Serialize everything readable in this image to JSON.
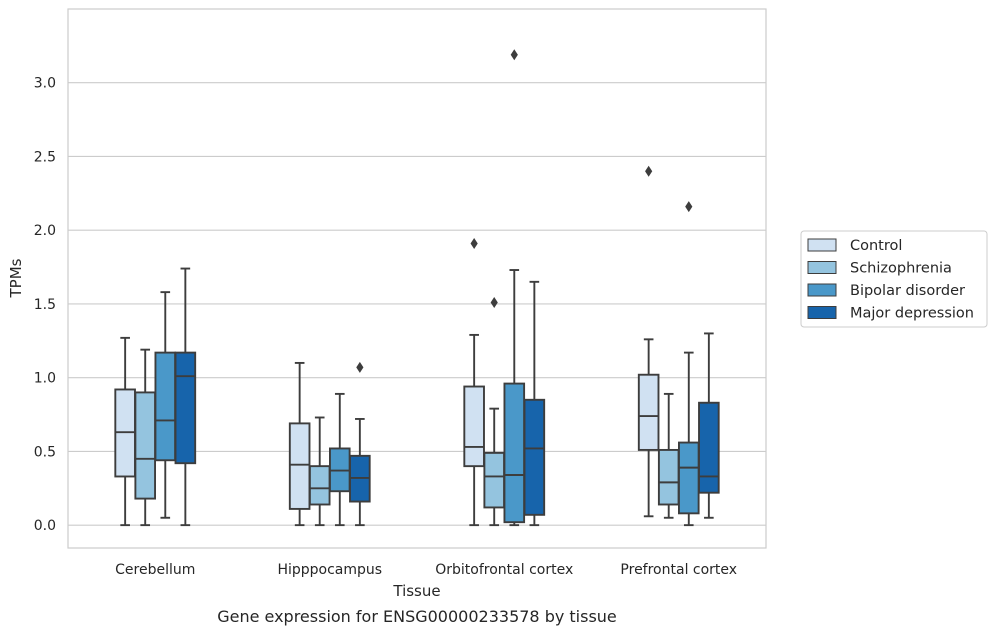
{
  "chart_data": {
    "type": "box",
    "caption": "Gene expression for ENSG00000233578 by tissue",
    "xlabel": "Tissue",
    "ylabel": "TPMs",
    "ylim": [
      -0.155,
      3.5
    ],
    "yticks": [
      0.0,
      0.5,
      1.0,
      1.5,
      2.0,
      2.5,
      3.0
    ],
    "ytick_labels": [
      "0.0",
      "0.5",
      "1.0",
      "1.5",
      "2.0",
      "2.5",
      "3.0"
    ],
    "grid": "horizontal",
    "legend_position": "outside right",
    "categories": [
      "Cerebellum",
      "Hipppocampus",
      "Orbitofrontal cortex",
      "Prefrontal cortex"
    ],
    "series": [
      {
        "name": "Control",
        "color": "#d0e1f2",
        "boxes": [
          {
            "whisker_low": 0.0,
            "q1": 0.33,
            "median": 0.63,
            "q3": 0.92,
            "whisker_high": 1.27,
            "outliers": []
          },
          {
            "whisker_low": 0.0,
            "q1": 0.11,
            "median": 0.41,
            "q3": 0.69,
            "whisker_high": 1.1,
            "outliers": []
          },
          {
            "whisker_low": 0.0,
            "q1": 0.4,
            "median": 0.53,
            "q3": 0.94,
            "whisker_high": 1.29,
            "outliers": [
              1.91
            ]
          },
          {
            "whisker_low": 0.06,
            "q1": 0.51,
            "median": 0.74,
            "q3": 1.02,
            "whisker_high": 1.26,
            "outliers": [
              2.4
            ]
          }
        ]
      },
      {
        "name": "Schizophrenia",
        "color": "#94c4df",
        "boxes": [
          {
            "whisker_low": 0.0,
            "q1": 0.18,
            "median": 0.45,
            "q3": 0.9,
            "whisker_high": 1.19,
            "outliers": []
          },
          {
            "whisker_low": 0.0,
            "q1": 0.14,
            "median": 0.25,
            "q3": 0.4,
            "whisker_high": 0.73,
            "outliers": []
          },
          {
            "whisker_low": 0.0,
            "q1": 0.12,
            "median": 0.33,
            "q3": 0.49,
            "whisker_high": 0.79,
            "outliers": [
              1.51
            ]
          },
          {
            "whisker_low": 0.05,
            "q1": 0.14,
            "median": 0.29,
            "q3": 0.51,
            "whisker_high": 0.89,
            "outliers": []
          }
        ]
      },
      {
        "name": "Bipolar disorder",
        "color": "#4a98c9",
        "boxes": [
          {
            "whisker_low": 0.05,
            "q1": 0.44,
            "median": 0.71,
            "q3": 1.17,
            "whisker_high": 1.58,
            "outliers": []
          },
          {
            "whisker_low": 0.0,
            "q1": 0.23,
            "median": 0.37,
            "q3": 0.52,
            "whisker_high": 0.89,
            "outliers": []
          },
          {
            "whisker_low": 0.0,
            "q1": 0.02,
            "median": 0.34,
            "q3": 0.96,
            "whisker_high": 1.73,
            "outliers": [
              3.19
            ]
          },
          {
            "whisker_low": 0.0,
            "q1": 0.08,
            "median": 0.39,
            "q3": 0.56,
            "whisker_high": 1.17,
            "outliers": [
              2.16
            ]
          }
        ]
      },
      {
        "name": "Major depression",
        "color": "#1764ab",
        "boxes": [
          {
            "whisker_low": 0.0,
            "q1": 0.42,
            "median": 1.01,
            "q3": 1.17,
            "whisker_high": 1.74,
            "outliers": []
          },
          {
            "whisker_low": 0.0,
            "q1": 0.16,
            "median": 0.32,
            "q3": 0.47,
            "whisker_high": 0.72,
            "outliers": [
              1.07
            ]
          },
          {
            "whisker_low": 0.0,
            "q1": 0.07,
            "median": 0.52,
            "q3": 0.85,
            "whisker_high": 1.65,
            "outliers": []
          },
          {
            "whisker_low": 0.05,
            "q1": 0.22,
            "median": 0.33,
            "q3": 0.83,
            "whisker_high": 1.3,
            "outliers": []
          }
        ]
      }
    ]
  },
  "colors": {
    "grid": "#cccccc",
    "frame": "#cccccc",
    "box_edge": "#3d3d3d",
    "text": "#262626"
  }
}
